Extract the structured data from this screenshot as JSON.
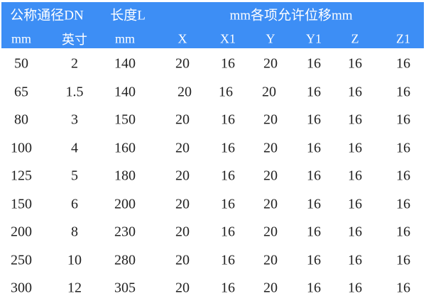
{
  "header_color": "#3d8ef5",
  "header_top": {
    "dn": "公称通径DN",
    "length": "长度L",
    "displacement": "mm各项允许位移mm"
  },
  "columns": [
    "mm",
    "英寸",
    "mm",
    "X",
    "X1",
    "Y",
    "Y1",
    "Z",
    "Z1"
  ],
  "rows": [
    [
      "50",
      "2",
      "140",
      "20",
      "16",
      "20",
      "16",
      "16",
      "16"
    ],
    [
      "65",
      "1.5",
      "140",
      "20",
      "16",
      "20",
      "16",
      "16",
      "16"
    ],
    [
      "80",
      "3",
      "150",
      "20",
      "16",
      "20",
      "16",
      "16",
      "16"
    ],
    [
      "100",
      "4",
      "160",
      "20",
      "16",
      "20",
      "16",
      "16",
      "16"
    ],
    [
      "125",
      "5",
      "180",
      "20",
      "16",
      "20",
      "16",
      "16",
      "16"
    ],
    [
      "150",
      "6",
      "200",
      "20",
      "16",
      "20",
      "16",
      "16",
      "16"
    ],
    [
      "200",
      "8",
      "230",
      "20",
      "16",
      "20",
      "16",
      "16",
      "16"
    ],
    [
      "250",
      "10",
      "280",
      "20",
      "16",
      "20",
      "16",
      "16",
      "16"
    ],
    [
      "300",
      "12",
      "305",
      "20",
      "16",
      "20",
      "16",
      "16",
      "16"
    ]
  ]
}
